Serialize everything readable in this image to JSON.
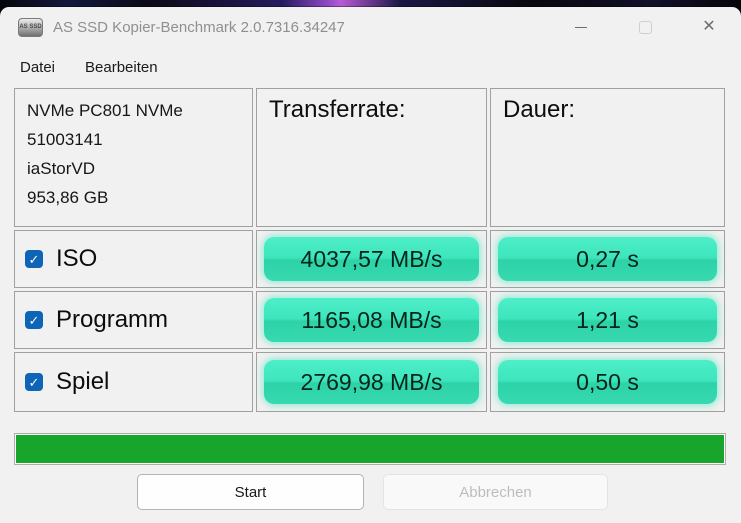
{
  "window": {
    "title": "AS SSD Kopier-Benchmark 2.0.7316.34247",
    "app_icon_text": "AS SSD"
  },
  "icons": {
    "close": "✕",
    "check": "✓"
  },
  "menu": {
    "items": [
      {
        "label": "Datei"
      },
      {
        "label": "Bearbeiten"
      }
    ]
  },
  "device": {
    "name": "NVMe PC801 NVMe",
    "serial": "51003141",
    "driver": "iaStorVD",
    "capacity": "953,86 GB"
  },
  "table": {
    "headers": {
      "rate": "Transferrate:",
      "duration": "Dauer:"
    },
    "rows": [
      {
        "label": "ISO",
        "checked": true,
        "rate": "4037,57 MB/s",
        "duration": "0,27 s"
      },
      {
        "label": "Programm",
        "checked": true,
        "rate": "1165,08 MB/s",
        "duration": "1,21 s"
      },
      {
        "label": "Spiel",
        "checked": true,
        "rate": "2769,98 MB/s",
        "duration": "0,50 s"
      }
    ]
  },
  "progress": {
    "percent": 100,
    "fill_width": "100%"
  },
  "buttons": {
    "start": "Start",
    "cancel": "Abbrechen"
  },
  "colors": {
    "window_bg": "#f1f1f1",
    "titlebar_text": "#8f8f8f",
    "menu_text": "#1a1a1a",
    "cell_bg": "#f1f1f1",
    "cell_border": "#a0a0a0",
    "pill_top": "#4defc8",
    "pill_mid_top": "#3ee5bc",
    "pill_mid_bottom": "#2ed2a7",
    "pill_bottom": "#37dab0",
    "pill_glow": "rgba(62,229,188,0.5)",
    "checkbox_blue": "#0e65b6",
    "progress_green": "#17a52c"
  }
}
